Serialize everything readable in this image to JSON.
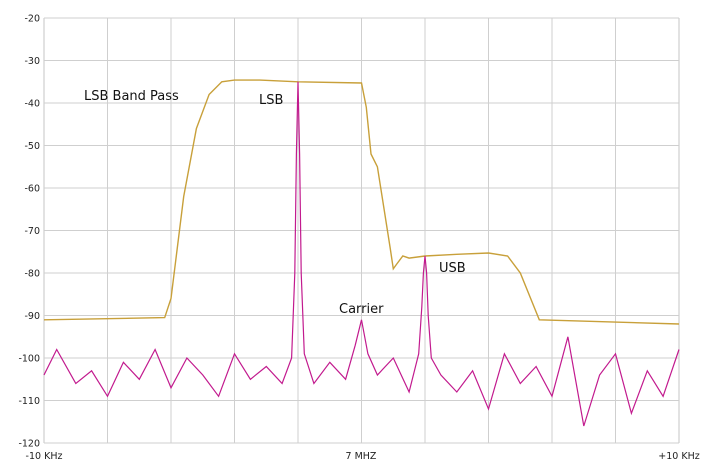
{
  "chart_data": {
    "type": "line",
    "title": "",
    "xlabel": "",
    "ylabel": "",
    "xlim": [
      -10,
      10
    ],
    "ylim": [
      -120,
      -20
    ],
    "grid": true,
    "y_ticks": [
      -20,
      -30,
      -40,
      -50,
      -60,
      -70,
      -80,
      -90,
      -100,
      -110,
      -120
    ],
    "y_tick_labels": [
      "-20",
      "-30",
      "-40",
      "-50",
      "-60",
      "-70",
      "-80",
      "-90",
      "-100",
      "-110",
      "-120"
    ],
    "x_tick_labels": {
      "left": "-10 KHz",
      "center": "7 MHZ",
      "right": "+10 KHz"
    },
    "x_unit": "kHz offset from 7 MHz",
    "colors": {
      "band_pass": "#c8a03a",
      "signal": "#c21a8e",
      "grid": "#cfcfcf"
    },
    "series": [
      {
        "key": "band_pass",
        "x": [
          -10,
          -6.2,
          -6.0,
          -5.6,
          -5.2,
          -4.8,
          -4.4,
          -4.0,
          -3.2,
          -2.0,
          0.0,
          0.15,
          0.3,
          0.5,
          0.9,
          1.0,
          1.1,
          1.3,
          1.5,
          2.0,
          3.0,
          4.0,
          4.6,
          5.0,
          5.6,
          10
        ],
        "y": [
          -91,
          -90.5,
          -86,
          -62,
          -46,
          -38,
          -35,
          -34.6,
          -34.6,
          -35,
          -35.3,
          -41,
          -52,
          -55,
          -74,
          -79,
          -78,
          -76,
          -76.5,
          -76,
          -75.6,
          -75.3,
          -76,
          -80,
          -91,
          -92
        ]
      },
      {
        "key": "signal",
        "x": [
          -10,
          -9.6,
          -9.0,
          -8.5,
          -8.0,
          -7.5,
          -7.0,
          -6.5,
          -6.0,
          -5.5,
          -5.0,
          -4.5,
          -4.0,
          -3.5,
          -3.0,
          -2.5,
          -2.2,
          -2.1,
          -2.05,
          -2.0,
          -1.95,
          -1.9,
          -1.8,
          -1.5,
          -1.0,
          -0.5,
          -0.2,
          0.0,
          0.2,
          0.5,
          1.0,
          1.5,
          1.8,
          1.9,
          1.95,
          2.0,
          2.05,
          2.1,
          2.2,
          2.5,
          3.0,
          3.5,
          4.0,
          4.5,
          5.0,
          5.5,
          6.0,
          6.5,
          7.0,
          7.5,
          8.0,
          8.5,
          9.0,
          9.5,
          10
        ],
        "y": [
          -104,
          -98,
          -106,
          -103,
          -109,
          -101,
          -105,
          -98,
          -107,
          -100,
          -104,
          -109,
          -99,
          -105,
          -102,
          -106,
          -100,
          -80,
          -52,
          -35,
          -52,
          -80,
          -99,
          -106,
          -101,
          -105,
          -97,
          -91,
          -99,
          -104,
          -100,
          -108,
          -99,
          -88,
          -80,
          -76,
          -80,
          -90,
          -100,
          -104,
          -108,
          -103,
          -112,
          -99,
          -106,
          -102,
          -109,
          -95,
          -116,
          -104,
          -99,
          -113,
          -103,
          -109,
          -98
        ]
      }
    ],
    "annotations": {
      "lsb_band_pass": "LSB Band Pass",
      "lsb": "LSB",
      "carrier": "Carrier",
      "usb": "USB"
    }
  }
}
